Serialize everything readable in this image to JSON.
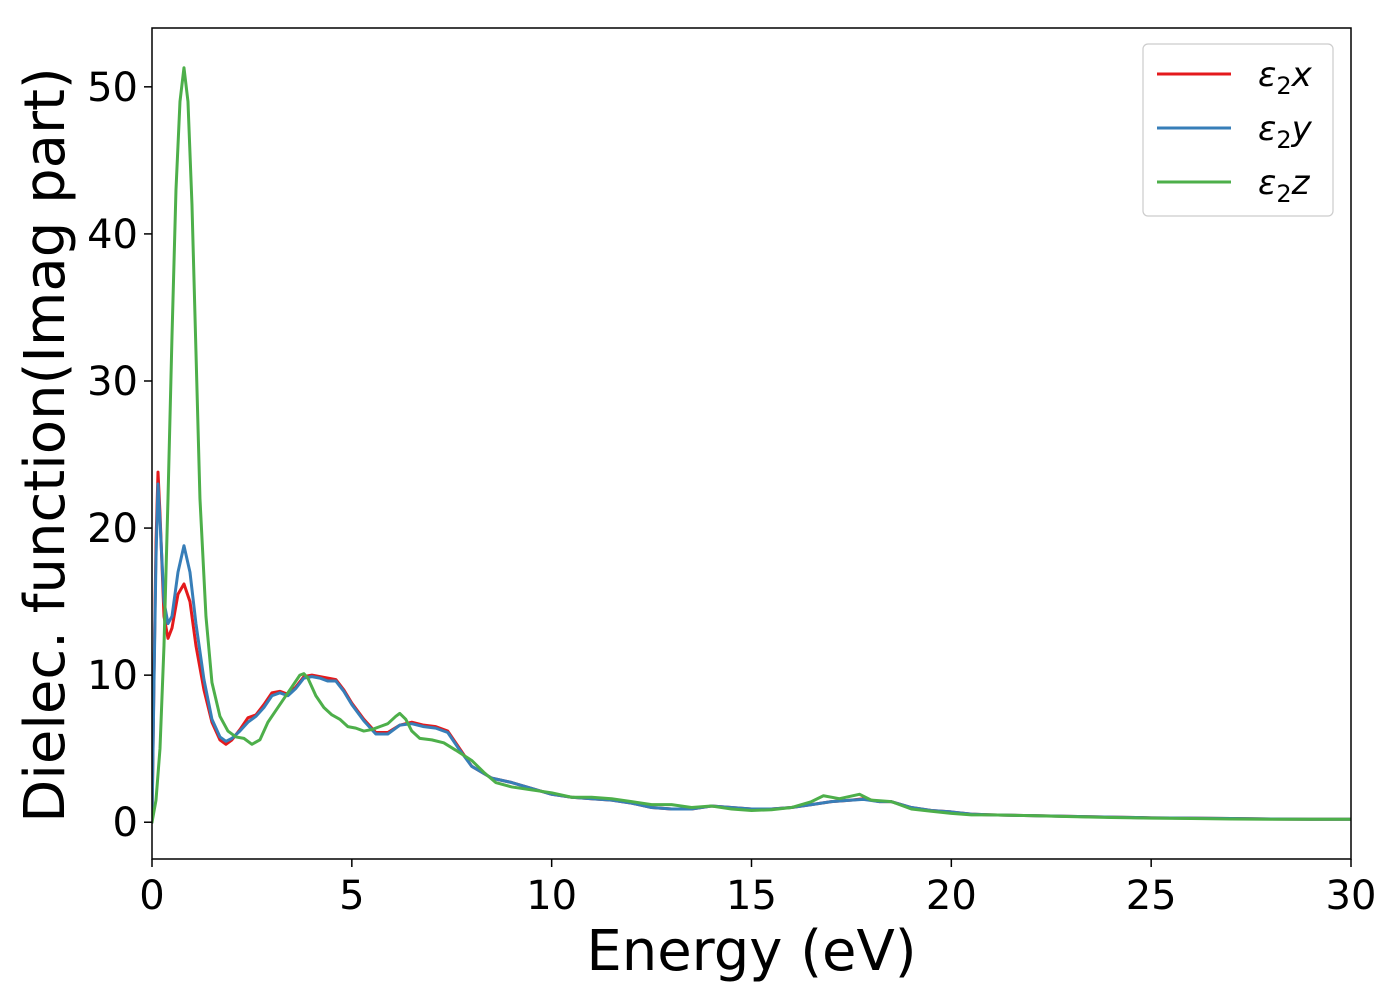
{
  "chart_data": {
    "type": "line",
    "title": "",
    "xlabel": "Energy (eV)",
    "ylabel": "Dielec. function(Imag part)",
    "xlim": [
      0,
      30
    ],
    "ylim": [
      -2.5,
      54
    ],
    "xticks": [
      0,
      5,
      10,
      15,
      20,
      25,
      30
    ],
    "yticks": [
      0,
      10,
      20,
      30,
      40,
      50
    ],
    "grid": false,
    "legend_position": "top-right",
    "series": [
      {
        "name": "ε₂x",
        "legend_base": "ε",
        "legend_sub": "2",
        "legend_suffix": "x",
        "color": "#e41a1c",
        "points": [
          [
            0,
            0
          ],
          [
            0.05,
            10
          ],
          [
            0.1,
            19
          ],
          [
            0.15,
            23.8
          ],
          [
            0.2,
            21
          ],
          [
            0.3,
            14
          ],
          [
            0.4,
            12.5
          ],
          [
            0.5,
            13.2
          ],
          [
            0.65,
            15.5
          ],
          [
            0.8,
            16.2
          ],
          [
            0.95,
            15
          ],
          [
            1.1,
            12
          ],
          [
            1.3,
            9
          ],
          [
            1.5,
            6.8
          ],
          [
            1.7,
            5.6
          ],
          [
            1.85,
            5.3
          ],
          [
            2.0,
            5.6
          ],
          [
            2.2,
            6.3
          ],
          [
            2.4,
            7.1
          ],
          [
            2.6,
            7.3
          ],
          [
            2.8,
            8
          ],
          [
            3.0,
            8.8
          ],
          [
            3.2,
            8.9
          ],
          [
            3.4,
            8.7
          ],
          [
            3.6,
            9.2
          ],
          [
            3.8,
            9.9
          ],
          [
            4.0,
            10
          ],
          [
            4.2,
            9.9
          ],
          [
            4.4,
            9.8
          ],
          [
            4.6,
            9.7
          ],
          [
            4.8,
            9.0
          ],
          [
            5.0,
            8.1
          ],
          [
            5.3,
            7.0
          ],
          [
            5.6,
            6.1
          ],
          [
            5.9,
            6.1
          ],
          [
            6.2,
            6.6
          ],
          [
            6.5,
            6.8
          ],
          [
            6.8,
            6.6
          ],
          [
            7.1,
            6.5
          ],
          [
            7.4,
            6.2
          ],
          [
            7.7,
            5.0
          ],
          [
            8.0,
            3.8
          ],
          [
            8.5,
            3.0
          ],
          [
            9.0,
            2.7
          ],
          [
            9.5,
            2.3
          ],
          [
            10,
            1.9
          ],
          [
            10.5,
            1.7
          ],
          [
            11,
            1.6
          ],
          [
            11.5,
            1.5
          ],
          [
            12,
            1.3
          ],
          [
            12.5,
            1.0
          ],
          [
            13,
            0.9
          ],
          [
            13.5,
            0.9
          ],
          [
            14,
            1.1
          ],
          [
            14.5,
            1.0
          ],
          [
            15,
            0.9
          ],
          [
            15.5,
            0.9
          ],
          [
            16,
            1.0
          ],
          [
            16.5,
            1.2
          ],
          [
            17,
            1.4
          ],
          [
            17.5,
            1.5
          ],
          [
            17.8,
            1.6
          ],
          [
            18.2,
            1.4
          ],
          [
            18.5,
            1.4
          ],
          [
            19,
            1.0
          ],
          [
            19.5,
            0.8
          ],
          [
            20,
            0.7
          ],
          [
            20.5,
            0.55
          ],
          [
            21,
            0.5
          ],
          [
            22,
            0.45
          ],
          [
            23,
            0.4
          ],
          [
            24,
            0.35
          ],
          [
            25,
            0.3
          ],
          [
            26,
            0.28
          ],
          [
            27,
            0.25
          ],
          [
            28,
            0.22
          ],
          [
            29,
            0.2
          ],
          [
            30,
            0.2
          ]
        ]
      },
      {
        "name": "ε₂y",
        "legend_base": "ε",
        "legend_sub": "2",
        "legend_suffix": "y",
        "color": "#377eb8",
        "points": [
          [
            0,
            0
          ],
          [
            0.05,
            9.5
          ],
          [
            0.1,
            18
          ],
          [
            0.15,
            23
          ],
          [
            0.2,
            20.5
          ],
          [
            0.3,
            15
          ],
          [
            0.4,
            13.5
          ],
          [
            0.5,
            14
          ],
          [
            0.65,
            17
          ],
          [
            0.8,
            18.8
          ],
          [
            0.95,
            17
          ],
          [
            1.1,
            13.5
          ],
          [
            1.3,
            9.7
          ],
          [
            1.5,
            7.0
          ],
          [
            1.7,
            5.8
          ],
          [
            1.85,
            5.5
          ],
          [
            2.0,
            5.7
          ],
          [
            2.2,
            6.2
          ],
          [
            2.4,
            6.8
          ],
          [
            2.6,
            7.2
          ],
          [
            2.8,
            7.8
          ],
          [
            3.0,
            8.6
          ],
          [
            3.2,
            8.8
          ],
          [
            3.4,
            8.6
          ],
          [
            3.6,
            9.1
          ],
          [
            3.8,
            9.8
          ],
          [
            4.0,
            9.9
          ],
          [
            4.2,
            9.8
          ],
          [
            4.4,
            9.6
          ],
          [
            4.6,
            9.6
          ],
          [
            4.8,
            8.9
          ],
          [
            5.0,
            8.0
          ],
          [
            5.3,
            6.9
          ],
          [
            5.6,
            6.0
          ],
          [
            5.9,
            6.0
          ],
          [
            6.2,
            6.6
          ],
          [
            6.5,
            6.7
          ],
          [
            6.8,
            6.5
          ],
          [
            7.1,
            6.4
          ],
          [
            7.4,
            6.1
          ],
          [
            7.7,
            4.9
          ],
          [
            8.0,
            3.8
          ],
          [
            8.5,
            3.0
          ],
          [
            9.0,
            2.7
          ],
          [
            9.5,
            2.3
          ],
          [
            10,
            1.9
          ],
          [
            10.5,
            1.7
          ],
          [
            11,
            1.6
          ],
          [
            11.5,
            1.5
          ],
          [
            12,
            1.3
          ],
          [
            12.5,
            1.0
          ],
          [
            13,
            0.9
          ],
          [
            13.5,
            0.9
          ],
          [
            14,
            1.1
          ],
          [
            14.5,
            1.0
          ],
          [
            15,
            0.9
          ],
          [
            15.5,
            0.9
          ],
          [
            16,
            1.0
          ],
          [
            16.5,
            1.2
          ],
          [
            17,
            1.4
          ],
          [
            17.5,
            1.5
          ],
          [
            17.8,
            1.55
          ],
          [
            18.2,
            1.4
          ],
          [
            18.5,
            1.4
          ],
          [
            19,
            1.0
          ],
          [
            19.5,
            0.8
          ],
          [
            20,
            0.7
          ],
          [
            20.5,
            0.55
          ],
          [
            21,
            0.5
          ],
          [
            22,
            0.45
          ],
          [
            23,
            0.4
          ],
          [
            24,
            0.35
          ],
          [
            25,
            0.3
          ],
          [
            26,
            0.28
          ],
          [
            27,
            0.25
          ],
          [
            28,
            0.22
          ],
          [
            29,
            0.2
          ],
          [
            30,
            0.2
          ]
        ]
      },
      {
        "name": "ε₂z",
        "legend_base": "ε",
        "legend_sub": "2",
        "legend_suffix": "z",
        "color": "#4daf4a",
        "points": [
          [
            0,
            0
          ],
          [
            0.1,
            1.5
          ],
          [
            0.2,
            5
          ],
          [
            0.3,
            12
          ],
          [
            0.4,
            22
          ],
          [
            0.5,
            33
          ],
          [
            0.6,
            43
          ],
          [
            0.7,
            49
          ],
          [
            0.8,
            51.3
          ],
          [
            0.9,
            49
          ],
          [
            1.0,
            42
          ],
          [
            1.1,
            32
          ],
          [
            1.2,
            22
          ],
          [
            1.35,
            14
          ],
          [
            1.5,
            9.5
          ],
          [
            1.7,
            7.2
          ],
          [
            1.9,
            6.2
          ],
          [
            2.1,
            5.8
          ],
          [
            2.3,
            5.7
          ],
          [
            2.5,
            5.3
          ],
          [
            2.7,
            5.6
          ],
          [
            2.9,
            6.8
          ],
          [
            3.1,
            7.6
          ],
          [
            3.3,
            8.4
          ],
          [
            3.5,
            9.2
          ],
          [
            3.7,
            10.0
          ],
          [
            3.8,
            10.1
          ],
          [
            3.9,
            9.8
          ],
          [
            4.1,
            8.6
          ],
          [
            4.3,
            7.8
          ],
          [
            4.5,
            7.3
          ],
          [
            4.7,
            7.0
          ],
          [
            4.9,
            6.5
          ],
          [
            5.1,
            6.4
          ],
          [
            5.3,
            6.2
          ],
          [
            5.5,
            6.3
          ],
          [
            5.7,
            6.5
          ],
          [
            5.9,
            6.7
          ],
          [
            6.1,
            7.2
          ],
          [
            6.2,
            7.4
          ],
          [
            6.35,
            7.0
          ],
          [
            6.5,
            6.2
          ],
          [
            6.7,
            5.7
          ],
          [
            7.0,
            5.6
          ],
          [
            7.3,
            5.4
          ],
          [
            7.6,
            4.9
          ],
          [
            8.0,
            4.2
          ],
          [
            8.3,
            3.4
          ],
          [
            8.6,
            2.7
          ],
          [
            9.0,
            2.4
          ],
          [
            9.5,
            2.2
          ],
          [
            10,
            2.0
          ],
          [
            10.5,
            1.7
          ],
          [
            11,
            1.7
          ],
          [
            11.5,
            1.6
          ],
          [
            12,
            1.4
          ],
          [
            12.5,
            1.2
          ],
          [
            13,
            1.2
          ],
          [
            13.5,
            1.0
          ],
          [
            14,
            1.1
          ],
          [
            14.5,
            0.9
          ],
          [
            15,
            0.8
          ],
          [
            15.5,
            0.85
          ],
          [
            16,
            1.0
          ],
          [
            16.5,
            1.4
          ],
          [
            16.8,
            1.8
          ],
          [
            17.2,
            1.6
          ],
          [
            17.7,
            1.9
          ],
          [
            18.0,
            1.5
          ],
          [
            18.5,
            1.4
          ],
          [
            19,
            0.9
          ],
          [
            19.5,
            0.75
          ],
          [
            20,
            0.6
          ],
          [
            20.5,
            0.5
          ],
          [
            21,
            0.5
          ],
          [
            22,
            0.45
          ],
          [
            23,
            0.38
          ],
          [
            24,
            0.32
          ],
          [
            25,
            0.28
          ],
          [
            26,
            0.25
          ],
          [
            27,
            0.22
          ],
          [
            28,
            0.2
          ],
          [
            29,
            0.2
          ],
          [
            30,
            0.2
          ]
        ]
      }
    ]
  }
}
